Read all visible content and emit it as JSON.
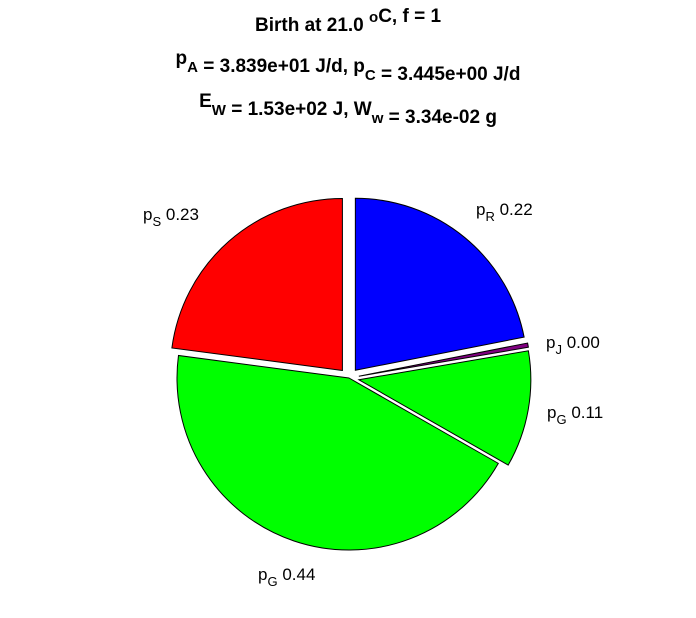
{
  "chart_data": {
    "type": "pie",
    "title_lines": [
      {
        "parts": [
          {
            "t": "Birth at 21.0 "
          },
          {
            "t": "o",
            "sup": true
          },
          {
            "t": "C, f = 1"
          }
        ]
      },
      {
        "parts": [
          {
            "t": "p"
          },
          {
            "t": "A",
            "sub": true
          },
          {
            "t": " = 3.839e+01 J/d, p"
          },
          {
            "t": "C",
            "sub": true
          },
          {
            "t": " = 3.445e+00 J/d"
          }
        ]
      },
      {
        "parts": [
          {
            "t": "E"
          },
          {
            "t": "W",
            "sub": true
          },
          {
            "t": " = 1.53e+02 J, W"
          },
          {
            "t": "w",
            "sub": true
          },
          {
            "t": " = 3.34e-02 g"
          }
        ]
      }
    ],
    "slices": [
      {
        "sym": "p",
        "sub": "R",
        "value_label": "0.22",
        "value": 0.22,
        "color": "#0000ff",
        "exploded": true
      },
      {
        "sym": "p",
        "sub": "J",
        "value_label": "0.00",
        "value": 0.004,
        "color": "#800080",
        "exploded": true
      },
      {
        "sym": "p",
        "sub": "G",
        "value_label": "0.11",
        "value": 0.11,
        "color": "#00ff00",
        "exploded": true
      },
      {
        "sym": "p",
        "sub": "G",
        "value_label": "0.44",
        "value": 0.44,
        "color": "#00ff00",
        "exploded": false
      },
      {
        "sym": "p",
        "sub": "S",
        "value_label": "0.23",
        "value": 0.23,
        "color": "#ff0000",
        "exploded": true
      }
    ]
  }
}
